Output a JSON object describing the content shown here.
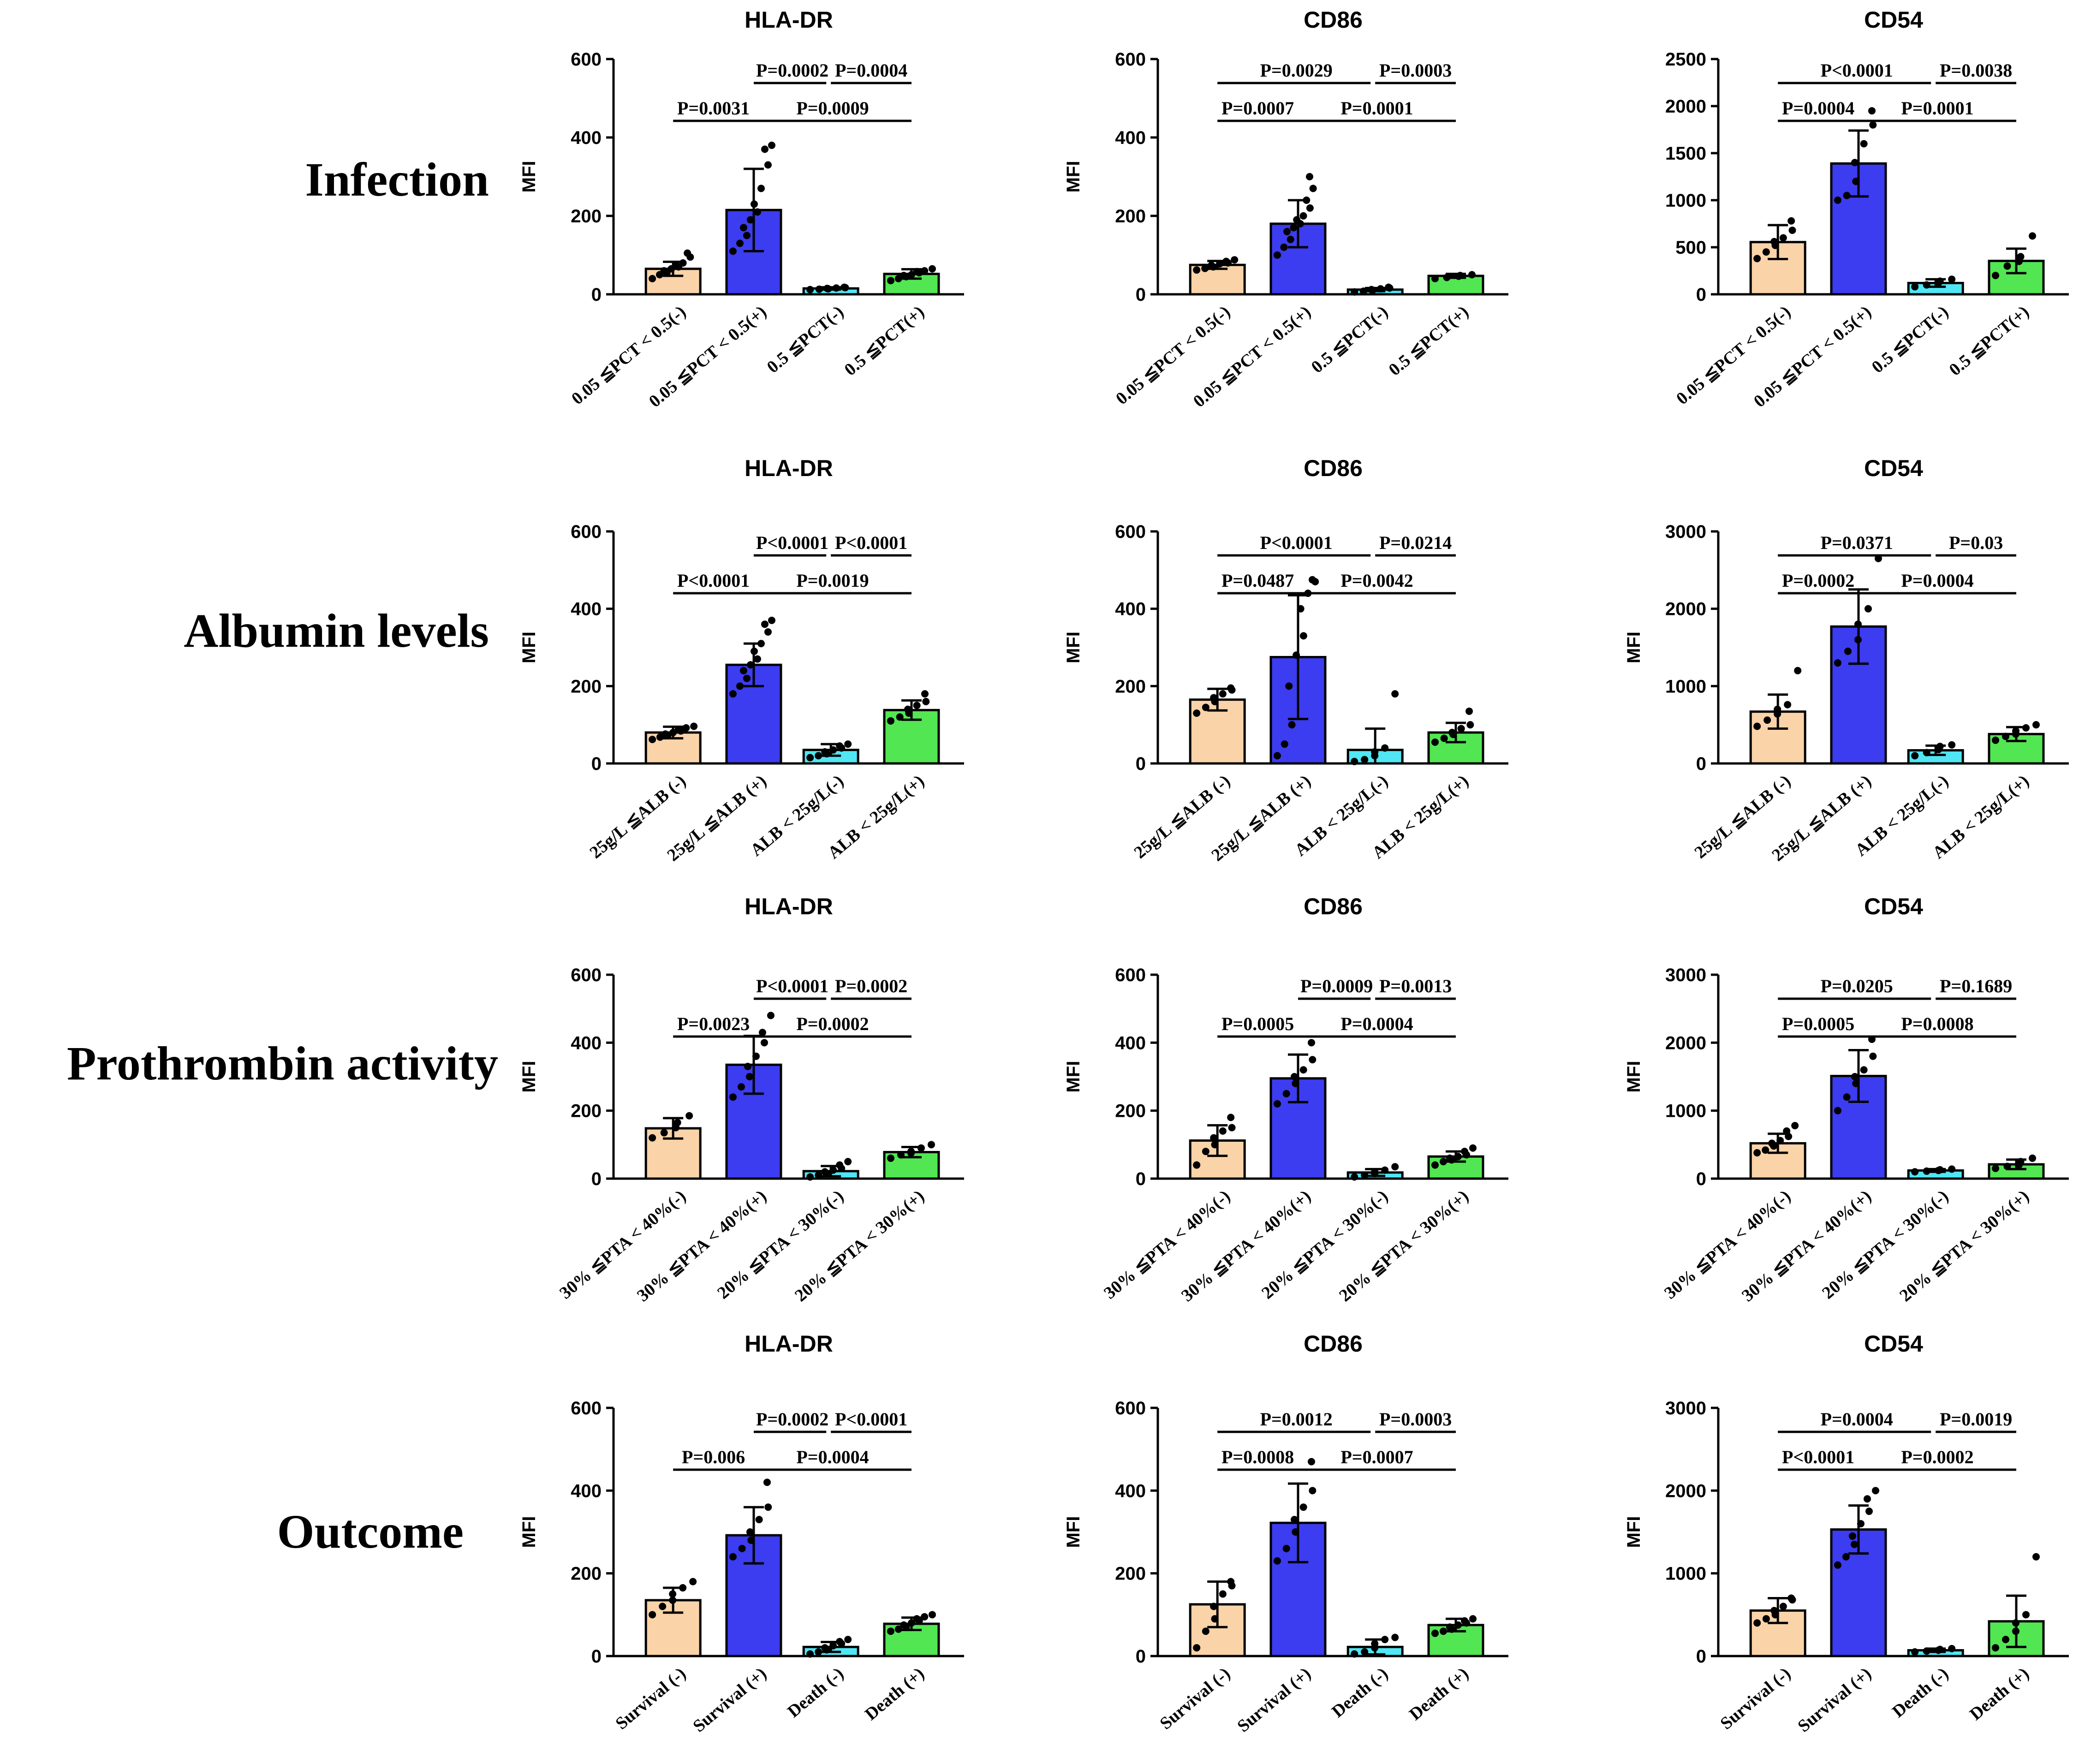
{
  "figure": {
    "row_labels": [
      "Infection",
      "Albumin levels",
      "Prothrombin activity",
      "Outcome"
    ]
  },
  "colors": {
    "bar_fills": [
      "#FAD3A9",
      "#3C3CF0",
      "#50E6F4",
      "#52E652"
    ],
    "outline": "#000000",
    "dots": "#000000"
  },
  "chart_data": [
    {
      "type": "bar",
      "row": 0,
      "col": 0,
      "title": "HLA-DR",
      "ylabel": "MFI",
      "categories": [
        "0.05 ≦PCT < 0.5(-)",
        "0.05 ≦PCT < 0.5(+)",
        "0.5 ≦PCT(-)",
        "0.5 ≦PCT(+)"
      ],
      "values": [
        65,
        215,
        15,
        52
      ],
      "errors": [
        18,
        105,
        3,
        12
      ],
      "points": [
        [
          40,
          50,
          55,
          60,
          65,
          70,
          75,
          80,
          95,
          105
        ],
        [
          110,
          130,
          150,
          170,
          190,
          210,
          230,
          270,
          330,
          370,
          380
        ],
        [
          12,
          13,
          14,
          15,
          16,
          17,
          18
        ],
        [
          35,
          40,
          45,
          48,
          50,
          55,
          58,
          60,
          65
        ]
      ],
      "ylim": [
        0,
        600
      ],
      "yticks": [
        0,
        200,
        400,
        600
      ],
      "comparisons": [
        {
          "i": 1,
          "j": 2,
          "label": "P=0.0002",
          "level": 0
        },
        {
          "i": 2,
          "j": 3,
          "label": "P=0.0004",
          "level": 0
        },
        {
          "i": 0,
          "j": 1,
          "label": "P=0.0031",
          "level": 1
        },
        {
          "i": 1,
          "j": 3,
          "label": "P=0.0009",
          "level": 1
        }
      ]
    },
    {
      "type": "bar",
      "row": 0,
      "col": 1,
      "title": "CD86",
      "ylabel": "MFI",
      "categories": [
        "0.05 ≦PCT < 0.5(-)",
        "0.05 ≦PCT < 0.5(+)",
        "0.5 ≦PCT(-)",
        "0.5 ≦PCT(+)"
      ],
      "values": [
        75,
        180,
        12,
        47
      ],
      "errors": [
        10,
        60,
        4,
        5
      ],
      "points": [
        [
          62,
          66,
          70,
          74,
          78,
          80,
          84,
          88
        ],
        [
          100,
          120,
          140,
          160,
          170,
          180,
          190,
          200,
          220,
          240,
          270,
          300
        ],
        [
          6,
          8,
          10,
          12,
          14,
          16,
          18
        ],
        [
          40,
          43,
          46,
          48,
          50
        ]
      ],
      "ylim": [
        0,
        600
      ],
      "yticks": [
        0,
        200,
        400,
        600
      ],
      "comparisons": [
        {
          "i": 0,
          "j": 2,
          "label": "P=0.0029",
          "level": 0
        },
        {
          "i": 2,
          "j": 3,
          "label": "P=0.0003",
          "level": 0
        },
        {
          "i": 0,
          "j": 1,
          "label": "P=0.0007",
          "level": 1
        },
        {
          "i": 1,
          "j": 3,
          "label": "P=0.0001",
          "level": 1
        }
      ]
    },
    {
      "type": "bar",
      "row": 0,
      "col": 2,
      "title": "CD54",
      "ylabel": "",
      "categories": [
        "0.05 ≦PCT < 0.5(-)",
        "0.05 ≦PCT < 0.5(+)",
        "0.5 ≦PCT(-)",
        "0.5 ≦PCT(+)"
      ],
      "values": [
        555,
        1390,
        120,
        355
      ],
      "errors": [
        180,
        350,
        40,
        130
      ],
      "points": [
        [
          380,
          450,
          520,
          560,
          600,
          680,
          780
        ],
        [
          1000,
          1050,
          1200,
          1400,
          1600,
          1800,
          1950
        ],
        [
          80,
          100,
          120,
          140,
          160
        ],
        [
          200,
          300,
          350,
          400,
          620
        ]
      ],
      "ylim": [
        0,
        2500
      ],
      "yticks": [
        0,
        500,
        1000,
        1500,
        2000,
        2500
      ],
      "comparisons": [
        {
          "i": 0,
          "j": 2,
          "label": "P<0.0001",
          "level": 0
        },
        {
          "i": 2,
          "j": 3,
          "label": "P=0.0038",
          "level": 0
        },
        {
          "i": 0,
          "j": 1,
          "label": "P=0.0004",
          "level": 1
        },
        {
          "i": 1,
          "j": 3,
          "label": "P=0.0001",
          "level": 1
        }
      ]
    },
    {
      "type": "bar",
      "row": 1,
      "col": 0,
      "title": "HLA-DR",
      "ylabel": "MFI",
      "categories": [
        "25g/L ≦ALB (-)",
        "25g/L ≦ALB (+)",
        "ALB < 25g/L(-)",
        "ALB < 25g/L(+)"
      ],
      "values": [
        80,
        255,
        35,
        138
      ],
      "errors": [
        15,
        55,
        15,
        25
      ],
      "points": [
        [
          62,
          68,
          72,
          76,
          80,
          84,
          88,
          92,
          96
        ],
        [
          180,
          200,
          220,
          240,
          255,
          270,
          290,
          310,
          340,
          360,
          370
        ],
        [
          15,
          20,
          25,
          30,
          35,
          40,
          45,
          50
        ],
        [
          110,
          120,
          130,
          140,
          150,
          160,
          180
        ]
      ],
      "ylim": [
        0,
        600
      ],
      "yticks": [
        0,
        200,
        400,
        600
      ],
      "comparisons": [
        {
          "i": 1,
          "j": 2,
          "label": "P<0.0001",
          "level": 0
        },
        {
          "i": 2,
          "j": 3,
          "label": "P<0.0001",
          "level": 0
        },
        {
          "i": 0,
          "j": 1,
          "label": "P<0.0001",
          "level": 1
        },
        {
          "i": 1,
          "j": 3,
          "label": "P=0.0019",
          "level": 1
        }
      ]
    },
    {
      "type": "bar",
      "row": 1,
      "col": 1,
      "title": "CD86",
      "ylabel": "MFI",
      "categories": [
        "25g/L ≦ALB (-)",
        "25g/L ≦ALB (+)",
        "ALB < 25g/L(-)",
        "ALB < 25g/L(+)"
      ],
      "values": [
        165,
        275,
        35,
        80
      ],
      "errors": [
        28,
        160,
        55,
        25
      ],
      "points": [
        [
          130,
          145,
          160,
          170,
          180,
          190,
          195
        ],
        [
          20,
          50,
          100,
          200,
          280,
          330,
          400,
          440,
          470,
          475
        ],
        [
          5,
          10,
          20,
          30,
          40,
          180
        ],
        [
          55,
          65,
          75,
          80,
          90,
          100,
          135
        ]
      ],
      "ylim": [
        0,
        600
      ],
      "yticks": [
        0,
        200,
        400,
        600
      ],
      "comparisons": [
        {
          "i": 0,
          "j": 2,
          "label": "P<0.0001",
          "level": 0
        },
        {
          "i": 2,
          "j": 3,
          "label": "P=0.0214",
          "level": 0
        },
        {
          "i": 0,
          "j": 1,
          "label": "P=0.0487",
          "level": 1
        },
        {
          "i": 1,
          "j": 3,
          "label": "P=0.0042",
          "level": 1
        }
      ]
    },
    {
      "type": "bar",
      "row": 1,
      "col": 2,
      "title": "CD54",
      "ylabel": "MFI",
      "categories": [
        "25g/L ≦ALB (-)",
        "25g/L ≦ALB (+)",
        "ALB < 25g/L(-)",
        "ALB < 25g/L(+)"
      ],
      "values": [
        670,
        1770,
        170,
        380
      ],
      "errors": [
        220,
        480,
        60,
        90
      ],
      "points": [
        [
          480,
          560,
          640,
          700,
          760,
          1200
        ],
        [
          1300,
          1450,
          1600,
          1800,
          2000,
          2650
        ],
        [
          100,
          140,
          180,
          220,
          240
        ],
        [
          300,
          350,
          380,
          420,
          460,
          500
        ]
      ],
      "ylim": [
        0,
        3000
      ],
      "yticks": [
        0,
        1000,
        2000,
        3000
      ],
      "comparisons": [
        {
          "i": 0,
          "j": 2,
          "label": "P=0.0371",
          "level": 0
        },
        {
          "i": 2,
          "j": 3,
          "label": "P=0.03",
          "level": 0
        },
        {
          "i": 0,
          "j": 1,
          "label": "P=0.0002",
          "level": 1
        },
        {
          "i": 1,
          "j": 3,
          "label": "P=0.0004",
          "level": 1
        }
      ]
    },
    {
      "type": "bar",
      "row": 2,
      "col": 0,
      "title": "HLA-DR",
      "ylabel": "MFI",
      "categories": [
        "30% ≦PTA < 40%(-)",
        "30% ≦PTA < 40%(+)",
        "20% ≦PTA < 30%(-)",
        "20% ≦PTA < 30%(+)"
      ],
      "values": [
        148,
        335,
        22,
        78
      ],
      "errors": [
        30,
        85,
        15,
        15
      ],
      "points": [
        [
          120,
          135,
          150,
          165,
          185
        ],
        [
          240,
          270,
          300,
          330,
          360,
          400,
          430,
          480
        ],
        [
          5,
          10,
          15,
          20,
          25,
          30,
          40,
          50
        ],
        [
          60,
          70,
          75,
          80,
          90,
          100
        ]
      ],
      "ylim": [
        0,
        600
      ],
      "yticks": [
        0,
        200,
        400,
        600
      ],
      "comparisons": [
        {
          "i": 1,
          "j": 2,
          "label": "P<0.0001",
          "level": 0
        },
        {
          "i": 2,
          "j": 3,
          "label": "P=0.0002",
          "level": 0
        },
        {
          "i": 0,
          "j": 1,
          "label": "P=0.0023",
          "level": 1
        },
        {
          "i": 1,
          "j": 3,
          "label": "P=0.0002",
          "level": 1
        }
      ]
    },
    {
      "type": "bar",
      "row": 2,
      "col": 1,
      "title": "CD86",
      "ylabel": "MFI",
      "categories": [
        "30% ≦PTA < 40%(-)",
        "30% ≦PTA < 40%(+)",
        "20% ≦PTA < 30%(-)",
        "20% ≦PTA < 30%(+)"
      ],
      "values": [
        112,
        295,
        18,
        65
      ],
      "errors": [
        45,
        70,
        10,
        15
      ],
      "points": [
        [
          40,
          80,
          100,
          120,
          140,
          150,
          180
        ],
        [
          220,
          250,
          280,
          300,
          320,
          350,
          400
        ],
        [
          5,
          10,
          15,
          20,
          25,
          35
        ],
        [
          40,
          50,
          55,
          60,
          65,
          70,
          80,
          90
        ]
      ],
      "ylim": [
        0,
        600
      ],
      "yticks": [
        0,
        200,
        400,
        600
      ],
      "comparisons": [
        {
          "i": 1,
          "j": 2,
          "label": "P=0.0009",
          "level": 0
        },
        {
          "i": 2,
          "j": 3,
          "label": "P=0.0013",
          "level": 0
        },
        {
          "i": 0,
          "j": 1,
          "label": "P=0.0005",
          "level": 1
        },
        {
          "i": 1,
          "j": 3,
          "label": "P=0.0004",
          "level": 1
        }
      ]
    },
    {
      "type": "bar",
      "row": 2,
      "col": 2,
      "title": "CD54",
      "ylabel": "MFI",
      "categories": [
        "30% ≦PTA < 40%(-)",
        "30% ≦PTA < 40%(+)",
        "20% ≦PTA < 30%(-)",
        "20% ≦PTA < 30%(+)"
      ],
      "values": [
        520,
        1510,
        120,
        210
      ],
      "errors": [
        140,
        380,
        20,
        70
      ],
      "points": [
        [
          380,
          420,
          480,
          520,
          560,
          620,
          700,
          780
        ],
        [
          1000,
          1200,
          1400,
          1500,
          1600,
          1800,
          2050
        ],
        [
          100,
          110,
          120,
          130,
          140
        ],
        [
          150,
          180,
          200,
          250,
          300
        ]
      ],
      "ylim": [
        0,
        3000
      ],
      "yticks": [
        0,
        1000,
        2000,
        3000
      ],
      "comparisons": [
        {
          "i": 0,
          "j": 2,
          "label": "P=0.0205",
          "level": 0
        },
        {
          "i": 2,
          "j": 3,
          "label": "P=0.1689",
          "level": 0
        },
        {
          "i": 0,
          "j": 1,
          "label": "P=0.0005",
          "level": 1
        },
        {
          "i": 1,
          "j": 3,
          "label": "P=0.0008",
          "level": 1
        }
      ]
    },
    {
      "type": "bar",
      "row": 3,
      "col": 0,
      "title": "HLA-DR",
      "ylabel": "MFI",
      "categories": [
        "Survival (-)",
        "Survival (+)",
        "Death (-)",
        "Death (+)"
      ],
      "values": [
        135,
        292,
        22,
        78
      ],
      "errors": [
        30,
        68,
        12,
        15
      ],
      "points": [
        [
          100,
          120,
          135,
          150,
          165,
          180
        ],
        [
          240,
          260,
          280,
          300,
          330,
          360,
          420
        ],
        [
          5,
          10,
          15,
          20,
          25,
          30,
          35,
          40
        ],
        [
          60,
          65,
          70,
          75,
          80,
          85,
          90,
          95,
          100
        ]
      ],
      "ylim": [
        0,
        600
      ],
      "yticks": [
        0,
        200,
        400,
        600
      ],
      "comparisons": [
        {
          "i": 1,
          "j": 2,
          "label": "P=0.0002",
          "level": 0
        },
        {
          "i": 2,
          "j": 3,
          "label": "P<0.0001",
          "level": 0
        },
        {
          "i": 0,
          "j": 1,
          "label": "P=0.006",
          "level": 1
        },
        {
          "i": 1,
          "j": 3,
          "label": "P=0.0004",
          "level": 1
        }
      ]
    },
    {
      "type": "bar",
      "row": 3,
      "col": 1,
      "title": "CD86",
      "ylabel": "MFI",
      "categories": [
        "Survival (-)",
        "Survival (+)",
        "Death (-)",
        "Death (+)"
      ],
      "values": [
        125,
        322,
        22,
        75
      ],
      "errors": [
        55,
        95,
        18,
        15
      ],
      "points": [
        [
          20,
          60,
          90,
          120,
          150,
          170,
          180
        ],
        [
          230,
          260,
          300,
          330,
          360,
          400,
          470
        ],
        [
          5,
          10,
          20,
          30,
          40,
          45
        ],
        [
          55,
          60,
          65,
          70,
          75,
          80,
          85,
          90
        ]
      ],
      "ylim": [
        0,
        600
      ],
      "yticks": [
        0,
        200,
        400,
        600
      ],
      "comparisons": [
        {
          "i": 0,
          "j": 2,
          "label": "P=0.0012",
          "level": 0
        },
        {
          "i": 2,
          "j": 3,
          "label": "P=0.0003",
          "level": 0
        },
        {
          "i": 0,
          "j": 1,
          "label": "P=0.0008",
          "level": 1
        },
        {
          "i": 1,
          "j": 3,
          "label": "P=0.0007",
          "level": 1
        }
      ]
    },
    {
      "type": "bar",
      "row": 3,
      "col": 2,
      "title": "CD54",
      "ylabel": "MFI",
      "categories": [
        "Survival (-)",
        "Survival (+)",
        "Death (-)",
        "Death (+)"
      ],
      "values": [
        550,
        1530,
        70,
        420
      ],
      "errors": [
        150,
        290,
        20,
        310
      ],
      "points": [
        [
          400,
          450,
          500,
          550,
          600,
          680,
          700
        ],
        [
          1100,
          1200,
          1350,
          1450,
          1600,
          1750,
          1900,
          2000
        ],
        [
          50,
          60,
          70,
          80,
          90
        ],
        [
          100,
          200,
          300,
          400,
          500,
          1200
        ]
      ],
      "ylim": [
        0,
        3000
      ],
      "yticks": [
        0,
        1000,
        2000,
        3000
      ],
      "comparisons": [
        {
          "i": 0,
          "j": 2,
          "label": "P=0.0004",
          "level": 0
        },
        {
          "i": 2,
          "j": 3,
          "label": "P=0.0019",
          "level": 0
        },
        {
          "i": 0,
          "j": 1,
          "label": "P<0.0001",
          "level": 1
        },
        {
          "i": 1,
          "j": 3,
          "label": "P=0.0002",
          "level": 1
        }
      ]
    }
  ]
}
